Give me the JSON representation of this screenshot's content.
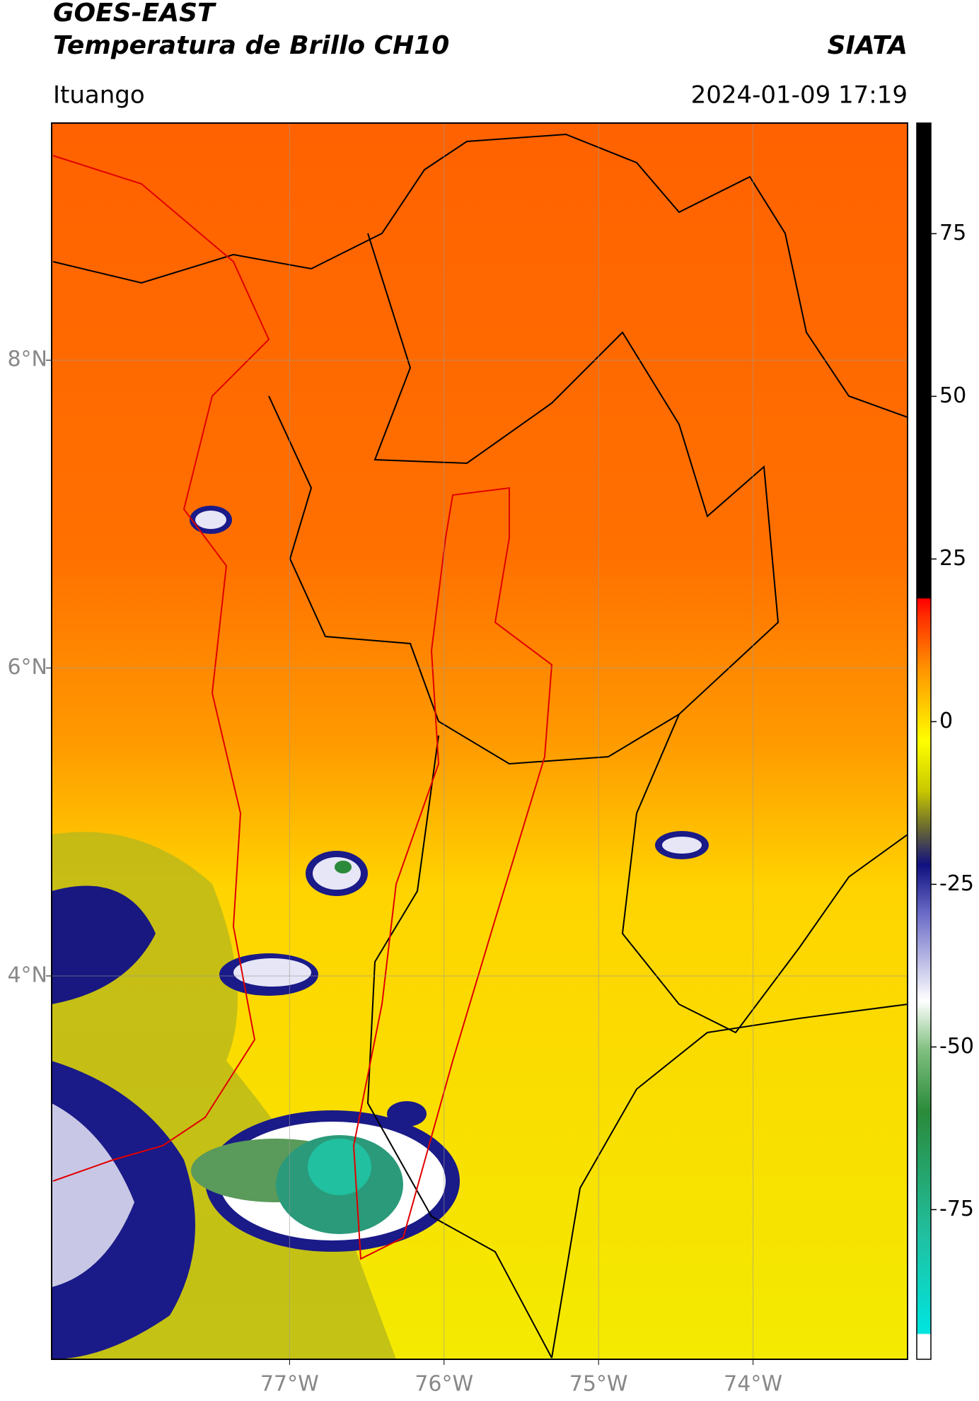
{
  "chart_data": {
    "type": "map",
    "title": "GOES-EAST",
    "subtitle": "Temperatura de Brillo CH10",
    "credit": "SIATA",
    "location": "Ituango",
    "timestamp": "2024-01-09 17:19",
    "xlim": [
      -78.54,
      -73.0
    ],
    "ylim": [
      1.51,
      9.54
    ],
    "xticks": [
      {
        "value": -77,
        "label": "77°W"
      },
      {
        "value": -76,
        "label": "76°W"
      },
      {
        "value": -75,
        "label": "75°W"
      },
      {
        "value": -74,
        "label": "74°W"
      }
    ],
    "yticks": [
      {
        "value": 8,
        "label": "8°N"
      },
      {
        "value": 6,
        "label": "6°N"
      },
      {
        "value": 4,
        "label": "4°N"
      }
    ],
    "grid": true,
    "colorbar": {
      "lim": [
        -98,
        92
      ],
      "ticks": [
        75,
        50,
        25,
        0,
        -25,
        -50,
        -75
      ]
    }
  }
}
